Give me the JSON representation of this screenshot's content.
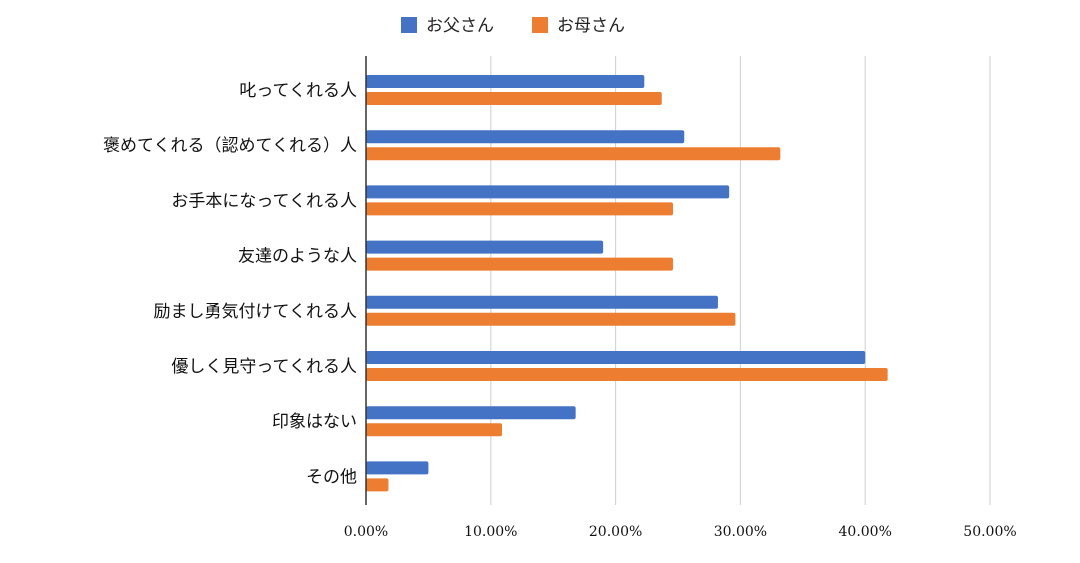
{
  "chart_data": {
    "type": "bar",
    "orientation": "horizontal",
    "categories": [
      "叱ってくれる人",
      "褒めてくれる（認めてくれる）人",
      "お手本になってくれる人",
      "友達のような人",
      "励まし勇気付けてくれる人",
      "優しく見守ってくれる人",
      "印象はない",
      "その他"
    ],
    "series": [
      {
        "name": "お父さん",
        "color": "#4472c4",
        "values": [
          22.3,
          25.5,
          29.1,
          19.0,
          28.2,
          40.0,
          16.8,
          5.0
        ]
      },
      {
        "name": "お母さん",
        "color": "#ed7d31",
        "values": [
          23.7,
          33.2,
          24.6,
          24.6,
          29.6,
          41.8,
          10.9,
          1.8
        ]
      }
    ],
    "xlim": [
      0,
      50
    ],
    "x_ticks": [
      "0.00%",
      "10.00%",
      "20.00%",
      "30.00%",
      "40.00%",
      "50.00%"
    ],
    "grid": true,
    "legend_position": "top"
  }
}
